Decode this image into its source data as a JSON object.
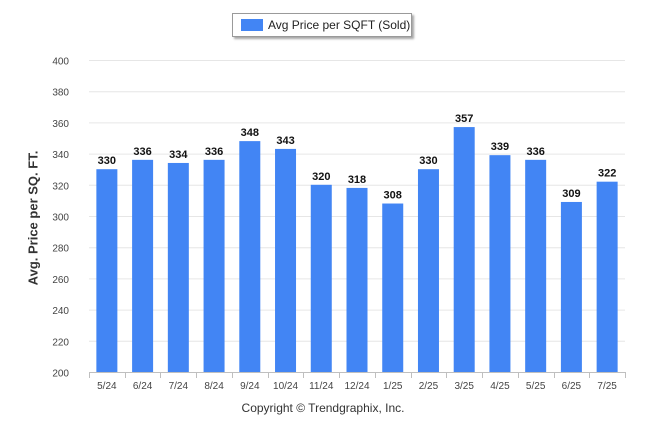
{
  "legend": {
    "label": "Avg Price per SQFT (Sold)"
  },
  "footer": {
    "text": "Copyright © Trendgraphix, Inc."
  },
  "colors": {
    "bar": "#4285f4",
    "grid": "#e6e6e6",
    "axis": "#bfbfbf"
  },
  "chart_data": {
    "type": "bar",
    "categories": [
      "5/24",
      "6/24",
      "7/24",
      "8/24",
      "9/24",
      "10/24",
      "11/24",
      "12/24",
      "1/25",
      "2/25",
      "3/25",
      "4/25",
      "5/25",
      "6/25",
      "7/25"
    ],
    "series": [
      {
        "name": "Avg Price per SQFT (Sold)",
        "values": [
          330,
          336,
          334,
          336,
          348,
          343,
          320,
          318,
          308,
          330,
          357,
          339,
          336,
          309,
          322
        ]
      }
    ],
    "ylabel": "Avg. Price per SQ. FT.",
    "ylim": [
      200,
      400
    ],
    "yticks": [
      200,
      220,
      240,
      260,
      280,
      300,
      320,
      340,
      360,
      380,
      400
    ],
    "grid": true,
    "legend_position": "top-center",
    "data_labels": true
  }
}
